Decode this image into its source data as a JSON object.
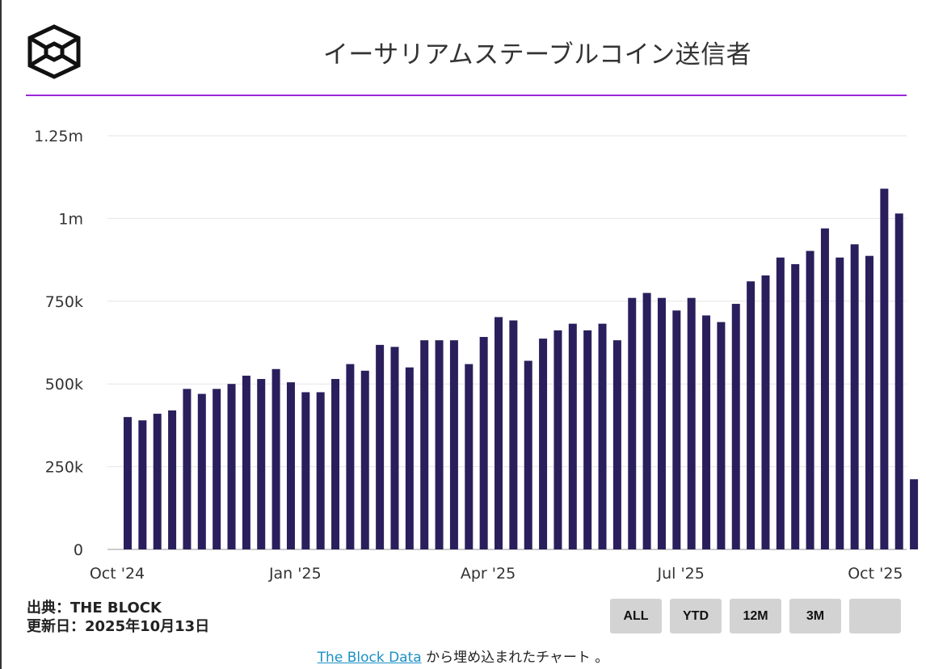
{
  "title": "イーサリアムステーブルコイン送信者",
  "source": {
    "line1": "出典：THE BLOCK",
    "line2": "更新日：2025年10月13日"
  },
  "range_buttons": [
    "ALL",
    "YTD",
    "12M",
    "3M",
    ""
  ],
  "footer": {
    "link_text": "The Block Data",
    "suffix": " から埋め込まれたチャート 。"
  },
  "colors": {
    "bar": "#2a1f5c",
    "title_rule": "#9b27d9",
    "grid": "#e6e6e6"
  },
  "chart_data": {
    "type": "bar",
    "title": "イーサリアムステーブルコイン送信者",
    "xlabel": "",
    "ylabel": "",
    "ylim": [
      0,
      1250000
    ],
    "yticks": [
      0,
      250000,
      500000,
      750000,
      1000000,
      1250000
    ],
    "ytick_labels": [
      "0",
      "250k",
      "500k",
      "750k",
      "1m",
      "1.25m"
    ],
    "xtick_labels": [
      "Oct '24",
      "Jan '25",
      "Apr '25",
      "Jul '25",
      "Oct '25"
    ],
    "xtick_bar_index": [
      0,
      12,
      25,
      38,
      51
    ],
    "grid": true,
    "values": [
      400000,
      390000,
      410000,
      420000,
      485000,
      470000,
      485000,
      500000,
      525000,
      515000,
      545000,
      505000,
      475000,
      475000,
      515000,
      560000,
      540000,
      618000,
      612000,
      550000,
      632000,
      632000,
      632000,
      560000,
      642000,
      702000,
      692000,
      570000,
      637000,
      662000,
      682000,
      662000,
      682000,
      632000,
      760000,
      775000,
      760000,
      722000,
      760000,
      707000,
      687000,
      742000,
      810000,
      828000,
      882000,
      862000,
      902000,
      970000,
      882000,
      922000,
      887000,
      1090000,
      1015000,
      212000
    ]
  }
}
